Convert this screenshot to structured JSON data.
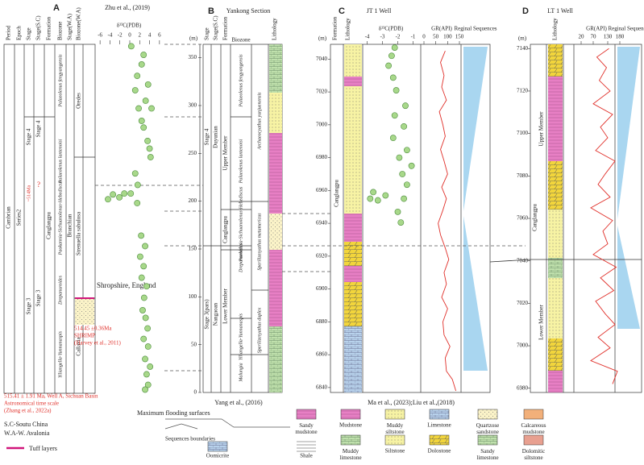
{
  "panel_a": {
    "label": "A",
    "source": "Zhu et al., (2019)",
    "headers": [
      "Period",
      "Epoch",
      "Stage",
      "Stage(S.C)",
      "Formation",
      "Biozone",
      "Stage(W.A)",
      "Biozone(W.A)"
    ],
    "period": "Cambrian",
    "epoch": "Series2",
    "stages": [
      "Stage 4",
      "Stage 3"
    ],
    "stages_sc": [
      "Stage 4",
      "Stage 3"
    ],
    "formation": "Canglangpu",
    "biozones": [
      "Palaeolenus fengyangensis",
      "Palaeolenus lantenoisi",
      "Paokannia-Sichuanolenus-Hebediscus",
      "Drepanuroides",
      "Yiliangella-Yunnanaspis"
    ],
    "stage_wa": "Branchian",
    "biozones_wa": [
      "Oredes",
      "Strenuella sabulosa",
      "Callavia"
    ],
    "age_mark": "~514Ma",
    "age_query": "?",
    "shropshire": "Shropshire, England",
    "shrimp": [
      "514.45 ±0.36Ma",
      "SHRIMP",
      "(Harvey et al., 2011)"
    ],
    "astro": [
      "515.41 ± 1.91 Ma, Well A, Sichuan Basin",
      "Astronomical time scale",
      "(Zhang et al., 2022a)"
    ],
    "d13c": {
      "label": "δ¹³C(PDB)",
      "xlim": [
        -7,
        7
      ],
      "xticks": [
        -6,
        -4,
        -2,
        0,
        2,
        4,
        6
      ],
      "color": "#a8d88a",
      "x": [
        0.3,
        2.8,
        2.4,
        1.5,
        3.7,
        1.1,
        3.2,
        1.8,
        4.4,
        2.4,
        2.8,
        3.6,
        4.0,
        4.2,
        1.1,
        1.6,
        0.2,
        -2.1,
        -4.4,
        -3.4,
        -1.1,
        1.5,
        2.3,
        3.1,
        2.1,
        2.8,
        2.4,
        3.4,
        2.9,
        2.6,
        3.2,
        3.6,
        2.8,
        3.7,
        3.1,
        4.1,
        3.4,
        3.7,
        3.1
      ],
      "depth": [
        362,
        353,
        343,
        331,
        322,
        316,
        305,
        297,
        297,
        284,
        277,
        263,
        255,
        246,
        229,
        217,
        208,
        204,
        202,
        207,
        208,
        198,
        164,
        153,
        142,
        132,
        120,
        111,
        99,
        86,
        78,
        67,
        56,
        48,
        35,
        27,
        19,
        8,
        3
      ]
    }
  },
  "panel_b": {
    "label": "B",
    "title": "Yankong Section",
    "source": "Yang et al., (2016)",
    "headers": [
      "Stage",
      "Stage(S.C)",
      "Formation",
      "Biozone",
      "Lithology"
    ],
    "unit": "(m)",
    "ylim": [
      0,
      364
    ],
    "yticks": [
      0,
      50,
      100,
      150,
      200,
      250,
      300,
      350
    ],
    "stages": [
      "Stage 4",
      "Stage 3(pars)"
    ],
    "stages_sc": [
      "Duyunian",
      "Nangaoan"
    ],
    "formation": "Canglangpu",
    "members": [
      "Upper Member",
      "Lower Member"
    ],
    "biozones": [
      "Palaeolenus fengyangensis",
      "Palaeolenus lantenoisi",
      "Paokannia-Sichuanolenus-Hebediscus",
      "Drepanuroides",
      "Yiliangella-Yunnanaspis",
      "Malungia"
    ],
    "archaeo": [
      "Archaeocyathus yunjuenensis",
      "Sperilizesyathus metamericus",
      "Sperilizesyathus duplex"
    ]
  },
  "panel_c": {
    "label": "C",
    "title": "JT 1 Well",
    "source": "Ma et al., (2023);Liu et al.,(2018)",
    "headers": [
      "Formation",
      "Lithology",
      "δ¹³C(PDB)",
      "GR(API)",
      "Reginal Sequences"
    ],
    "unit": "(m)",
    "formation": "Canglangpu",
    "ylim": [
      6837,
      7049
    ],
    "yticks": [
      6840,
      6860,
      6880,
      6900,
      6920,
      6940,
      6960,
      6980,
      7000,
      7020,
      7040
    ],
    "d13c": {
      "xlim": [
        -4.5,
        -0.5
      ],
      "xticks": [
        -4,
        -3,
        -2,
        -1
      ],
      "color": "#a8d88a",
      "x": [
        -1.8,
        -2.0,
        -3.8,
        -3.3,
        -2.8,
        -3.6,
        -1.6,
        -1.4,
        -1.7,
        -1.1,
        -1.9,
        -1.4,
        -2.3,
        -1.6,
        -2.2,
        -1.5,
        -2.1,
        -2.3,
        -2.6,
        -2.4,
        -2.2
      ],
      "depth": [
        6940.5,
        6947,
        6955,
        6954,
        6957,
        6959,
        6955,
        6963.5,
        6970,
        6975,
        6980,
        6984.6,
        6992,
        6999,
        7005.7,
        7011.6,
        7021,
        7028.7,
        7036,
        7042,
        7047
      ]
    },
    "gr": {
      "xlim": [
        0,
        150
      ],
      "xticks": [
        0,
        50,
        100,
        150
      ],
      "color": "#e0302a",
      "depth": [
        6838,
        6845,
        6850,
        6858,
        6865,
        6872,
        6880,
        6888,
        6895,
        6903,
        6910,
        6918,
        6925,
        6933,
        6940,
        6948,
        6955,
        6962,
        6970,
        6978,
        6985,
        6993,
        7000,
        7008,
        7015,
        7023,
        7030,
        7038,
        7045
      ],
      "values": [
        135,
        120,
        95,
        90,
        110,
        85,
        80,
        100,
        75,
        95,
        85,
        105,
        90,
        70,
        60,
        80,
        95,
        75,
        100,
        85,
        70,
        90,
        80,
        65,
        95,
        75,
        85,
        70,
        90
      ]
    }
  },
  "panel_d": {
    "label": "D",
    "title": "LT 1 Well",
    "headers": [
      "Lithology",
      "GR(API)",
      "Reginal Sequences"
    ],
    "unit": "(m)",
    "formation": "Canglangpu",
    "members": [
      "Upper Member",
      "Lower Member"
    ],
    "ylim": [
      6978,
      7142
    ],
    "yticks": [
      6980,
      7000,
      7020,
      7040,
      7060,
      7080,
      7100,
      7120,
      7140
    ],
    "gr": {
      "xlim": [
        0,
        200
      ],
      "xticks": [
        20,
        70,
        130,
        180
      ],
      "color": "#e0302a",
      "depth": [
        6982,
        6988,
        6993,
        6999,
        7004,
        7010,
        7015,
        7021,
        7026,
        7032,
        7037,
        7043,
        7048,
        7054,
        7059,
        7065,
        7070,
        7076,
        7081,
        7087,
        7092,
        7098,
        7103,
        7109,
        7114,
        7120,
        7125,
        7131,
        7136,
        7140
      ],
      "values": [
        150,
        170,
        60,
        140,
        90,
        160,
        120,
        80,
        155,
        100,
        165,
        70,
        130,
        110,
        150,
        60,
        140,
        90,
        120,
        160,
        80,
        130,
        100,
        150,
        70,
        140,
        95,
        125,
        85,
        135
      ]
    }
  },
  "legend": {
    "abbrev": [
      "S.C-Soutu China",
      "W.A-W. Avalonia"
    ],
    "lines": [
      "Maximum flooding surfaces",
      "Sequences boundaries",
      "Tuff layers"
    ],
    "rocks": [
      "Sandy mudstone",
      "Mudstone",
      "Muddy siltstone",
      "Limestone",
      "Quartzose sandstone",
      "Calcareous mudstone",
      "Oomicrite",
      "Shale",
      "Muddy limestone",
      "Siltstone",
      "Dolostone",
      "Sandy limestone",
      "Dolomitic siltstone"
    ]
  }
}
